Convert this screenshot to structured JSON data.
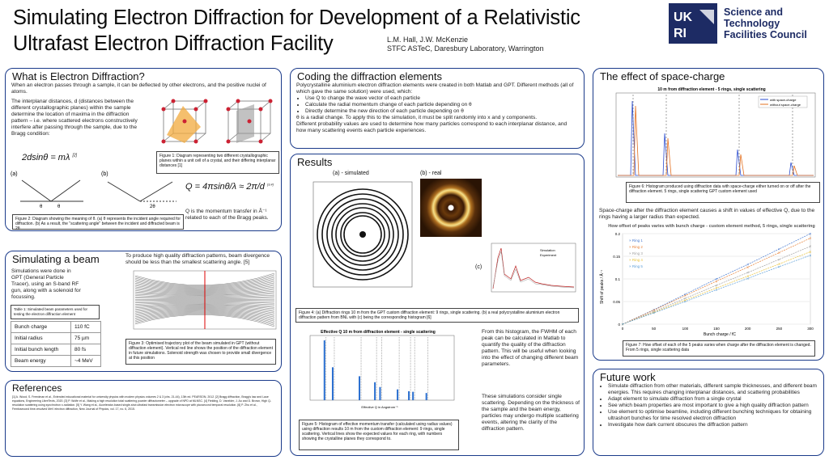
{
  "header": {
    "title_line1": "Simulating Electron Diffraction for Development of a Relativistic",
    "title_line2": "Ultrafast Electron Diffraction Facility",
    "authors": "L.M. Hall, J.W. McKenzie",
    "affiliation": "STFC ASTeC, Daresbury Laboratory, Warrington",
    "logo_text": "Science and\nTechnology\nFacilities Council",
    "logo_mark": "UKRI"
  },
  "what": {
    "heading": "What is Electron Diffraction?",
    "p1": "When an electron passes through a sample, it can be deflected by other electrons, and the positive nuclei of atoms.",
    "p2": "The interplanar distances, d (distances between the different crystallographic planes) within the sample determine the location of maxima in the diffraction pattern – i.e. where scattered electrons constructively interfere after passing through the sample, due to the Bragg condition:",
    "bragg": "2dsinθ = mλ",
    "bragg_ref": "[2]",
    "fig1": "Figure 1: Diagram representing two different crystallographic planes within a unit cell of a crystal, and their differing interplanar distances [1]",
    "fig2": "Figure 2: Diagram showing the meaning of θ. (a) θ represents the incident angle required for diffraction. (b) As a result, the \"scattering angle\" between the incident and diffracted beam is 2θ",
    "label_a": "(a)",
    "label_b": "(b)",
    "theta": "θ",
    "two_theta": "2θ",
    "qeq": "Q = 4πsinθ/λ ≈ 2π/d",
    "qref": "[3,4]",
    "qtext": "Q is the momentum transfer in Å⁻¹ related to each of the Bragg peaks."
  },
  "beam": {
    "heading": "Simulating a beam",
    "p1": "Simulations were done in GPT (General Particle Tracer), using an S-band RF gun, along with a solenoid for focussing.",
    "p2": "To produce high quality diffraction patterns, beam divergence should be less than the smallest scattering angle. [5]",
    "table_caption": "Table 1: Simulated beam parameters used for testing the electron diffraction element",
    "table": [
      [
        "Bunch charge",
        "110 fC"
      ],
      [
        "Initial radius",
        "75 µm"
      ],
      [
        "Initial bunch length",
        "80 fs"
      ],
      [
        "Beam energy",
        "~4 MeV"
      ]
    ],
    "fig3": "Figure 3: Optimised trajectory plot of the beam simulated in GPT (without diffraction element). Vertical red line shows the position of the diffraction element in future simulations. Solenoid strength was chosen to provide small divergence at this position"
  },
  "coding": {
    "heading": "Coding the diffraction elements",
    "p1": "Polycrystalline aluminium electron diffraction elements were created in both Matlab and GPT. Different methods (all of which gave the same solution) were used, which:",
    "bullets": [
      "Use Q to change the wave vector of each particle",
      "Calculate the radial momentum change of each particle depending on θ",
      "Directly determine the new direction of each particle depending on θ"
    ],
    "p2": "θ is a radial change. To apply this to the simulation, it must be split randomly into x and y components.",
    "p3": "Different probability values are used to determine how many particles correspond to each interplanar distance, and how many scattering events each particle experiences."
  },
  "results": {
    "heading": "Results",
    "label_a": "(a) - simulated",
    "label_b": "(b) - real",
    "label_c": "(c)",
    "fig4": "Figure 4: (a) Diffraction rings 10 m from the GPT custom diffraction element: 9 rings, single scattering. (b) a real polycrystalline aluminium electron diffraction pattern from BNL with (c) being the corresponding histogram [6]",
    "hist_title": "Effective Q 10 m from diffraction element - single scattering",
    "hist_x": "Effective Q in Angstrom⁻¹",
    "hist_y": "Number of macro-particles",
    "fig5": "Figure 5: Histogram of effective momentum transfer (calculated using radius values) using diffraction results 10 m from the custom diffraction element: 9 rings, single scattering. Vertical lines show the expected values for each ring, with numbers showing the crystalline planes they correspond to.",
    "p1": "From this histogram, the FWHM of each peak can be calculated in Matlab to quantify the quality of the diffraction pattern. This will be useful when looking into the effect of changing different beam parameters.",
    "p2": "These simulations consider single scattering. Depending on the thickness of the sample and the beam energy, particles may undergo multiple scattering events, altering the clarity of the diffraction pattern.",
    "sim_legend": "Simulation",
    "exp_legend": "Experiment"
  },
  "space": {
    "heading": "The effect of space-charge",
    "plot_title": "10 m from diffraction element - 5 rings, single scattering",
    "legend1": "with space-charge",
    "legend2": "without space-charge",
    "fig6": "Figure 6: Histogram produced using diffraction data with space-charge either turned on or off after the diffraction element. 5 rings, single scattering GPT custom element used",
    "p1": "Space-charge after the diffraction element causes a shift in values of effective Q, due to the rings having a larger radius than expected.",
    "chart_title": "How offset of peaks varies with bunch charge - custom element method, 5 rings, single scattering",
    "xlabel": "Bunch charge / fC",
    "ylabel": "Shift of peaks / Å⁻¹",
    "fig7": "Figure 7: How offset of each of the 5 peaks varies when charge after the diffraction element is changed. From 5 rings, single scattering data"
  },
  "future": {
    "heading": "Future work",
    "bullets": [
      "Simulate diffraction from other materials, different sample thicknesses, and different beam energies. This requires changing interplanar distances, and scattering probabilities",
      "Adapt element to simulate diffraction from a single crystal",
      "See which beam properties are most important to give a high quality diffraction pattern",
      "Use element to optimise beamline, including different bunching techniques for obtaining ultrashort bunches for time resolved electron diffraction",
      "Investigate how dark current obscures the diffraction pattern"
    ]
  },
  "refs": {
    "heading": "References",
    "text": "[1] A. Wood, S. Freedman et al., Extended educational material for university physics with modern physics volumes 2 & 3 (chs. 21-44), 13th ed. PEARSON, 2012. [2] Bragg diffraction, Bragg's law and Laue equations, Engineering LibreTexts, 2020. [3] P. Wolfe et al., Making a high resolution total scattering powder diffractometer – upgrade of NPD at MLNSC. [4] Fielding, D. Vanelder, J. Ao and D. Brown, High Q-resolution scattering using synchrotron x-radiation. [5] Y. Wang et al., Accelerator-based single-shot ultrafast transmission electron microscope with picosecond temporal resolution. [6] P. Zhu et al., Femtosecond time-resolved MeV electron diffraction, New Journal of Physics, vol. 17, no. 6, 2015."
  },
  "chart_data": [
    {
      "type": "line",
      "title": "How offset of peaks varies with bunch charge - custom element method, 5 rings, single scattering",
      "xlabel": "Bunch charge / fC",
      "ylabel": "Shift of peaks / Å⁻¹",
      "xlim": [
        0,
        300
      ],
      "ylim": [
        0,
        0.2
      ],
      "series": [
        {
          "name": "Ring 1",
          "color": "#4a7bd0",
          "x": [
            0,
            50,
            100,
            150,
            200,
            250,
            300
          ],
          "y": [
            0,
            0.032,
            0.066,
            0.1,
            0.132,
            0.166,
            0.2
          ]
        },
        {
          "name": "Ring 2",
          "color": "#e8833a",
          "x": [
            0,
            50,
            100,
            150,
            200,
            250,
            300
          ],
          "y": [
            0,
            0.031,
            0.063,
            0.095,
            0.126,
            0.158,
            0.19
          ]
        },
        {
          "name": "Ring 3",
          "color": "#a0a0a0",
          "x": [
            0,
            50,
            100,
            150,
            200,
            250,
            300
          ],
          "y": [
            0,
            0.028,
            0.057,
            0.086,
            0.114,
            0.143,
            0.172
          ]
        },
        {
          "name": "Ring 4",
          "color": "#e8c23a",
          "x": [
            0,
            50,
            100,
            150,
            200,
            250,
            300
          ],
          "y": [
            0,
            0.026,
            0.053,
            0.08,
            0.106,
            0.133,
            0.16
          ]
        },
        {
          "name": "Ring 5",
          "color": "#5fa0d8",
          "x": [
            0,
            50,
            100,
            150,
            200,
            250,
            300
          ],
          "y": [
            0,
            0.025,
            0.05,
            0.076,
            0.101,
            0.127,
            0.152
          ]
        }
      ]
    },
    {
      "type": "bar",
      "title": "Effective Q 10 m from diffraction element - single scattering",
      "xlabel": "Effective Q in Angstrom⁻¹",
      "ylabel": "Number of macro-particles",
      "peaks_x": [
        2.7,
        3.1,
        4.4,
        5.15,
        5.4,
        6.25,
        6.8,
        7.0,
        7.65
      ],
      "peaks_y": [
        1.0,
        0.55,
        0.4,
        0.3,
        0.22,
        0.18,
        0.15,
        0.14,
        0.12
      ]
    }
  ]
}
